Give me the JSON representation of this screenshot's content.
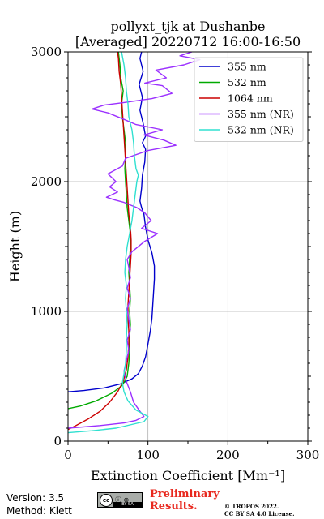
{
  "chart_data": {
    "type": "line",
    "title": "pollyxt_tjk at Dushanbe",
    "subtitle": "[Averaged] 20220712 16:00-16:50",
    "xlabel": "Extinction Coefficient [Mm⁻¹]",
    "ylabel": "Height (m)",
    "xlim": [
      0,
      300
    ],
    "ylim": [
      0,
      3000
    ],
    "xticks": [
      "0",
      "100",
      "200",
      "300"
    ],
    "yticks": [
      "0",
      "1000",
      "2000",
      "3000"
    ],
    "grid": true,
    "legend_position": "top-right",
    "series": [
      {
        "name": "355 nm",
        "color": "#0000cc",
        "points": [
          [
            0,
            380
          ],
          [
            20,
            390
          ],
          [
            45,
            410
          ],
          [
            65,
            440
          ],
          [
            80,
            480
          ],
          [
            88,
            520
          ],
          [
            93,
            580
          ],
          [
            97,
            650
          ],
          [
            100,
            750
          ],
          [
            103,
            850
          ],
          [
            105,
            950
          ],
          [
            106,
            1050
          ],
          [
            107,
            1150
          ],
          [
            108,
            1250
          ],
          [
            108,
            1350
          ],
          [
            105,
            1450
          ],
          [
            100,
            1550
          ],
          [
            97,
            1650
          ],
          [
            95,
            1750
          ],
          [
            92,
            1800
          ],
          [
            90,
            1850
          ],
          [
            92,
            1950
          ],
          [
            93,
            2050
          ],
          [
            96,
            2150
          ],
          [
            97,
            2250
          ],
          [
            93,
            2300
          ],
          [
            97,
            2350
          ],
          [
            94,
            2450
          ],
          [
            90,
            2550
          ],
          [
            93,
            2650
          ],
          [
            89,
            2750
          ],
          [
            94,
            2850
          ],
          [
            90,
            2950
          ],
          [
            92,
            3000
          ]
        ]
      },
      {
        "name": "532 nm",
        "color": "#00aa00",
        "points": [
          [
            0,
            250
          ],
          [
            15,
            270
          ],
          [
            35,
            310
          ],
          [
            55,
            370
          ],
          [
            68,
            430
          ],
          [
            74,
            500
          ],
          [
            76,
            600
          ],
          [
            77,
            700
          ],
          [
            77,
            800
          ],
          [
            78,
            900
          ],
          [
            77,
            1000
          ],
          [
            78,
            1100
          ],
          [
            77,
            1200
          ],
          [
            76,
            1300
          ],
          [
            77,
            1400
          ],
          [
            78,
            1500
          ],
          [
            78,
            1600
          ],
          [
            76,
            1700
          ],
          [
            74,
            1800
          ],
          [
            73,
            1900
          ],
          [
            72,
            2000
          ],
          [
            71,
            2100
          ],
          [
            72,
            2200
          ],
          [
            72,
            2300
          ],
          [
            70,
            2400
          ],
          [
            68,
            2500
          ],
          [
            67,
            2600
          ],
          [
            69,
            2700
          ],
          [
            66,
            2800
          ],
          [
            65,
            2900
          ],
          [
            63,
            3000
          ]
        ]
      },
      {
        "name": "1064 nm",
        "color": "#cc0000",
        "points": [
          [
            0,
            90
          ],
          [
            10,
            120
          ],
          [
            25,
            170
          ],
          [
            40,
            230
          ],
          [
            52,
            300
          ],
          [
            62,
            380
          ],
          [
            69,
            460
          ],
          [
            73,
            550
          ],
          [
            75,
            650
          ],
          [
            76,
            750
          ],
          [
            76,
            850
          ],
          [
            75,
            950
          ],
          [
            75,
            1050
          ],
          [
            76,
            1150
          ],
          [
            77,
            1250
          ],
          [
            78,
            1350
          ],
          [
            79,
            1450
          ],
          [
            79,
            1550
          ],
          [
            78,
            1650
          ],
          [
            76,
            1750
          ],
          [
            75,
            1850
          ],
          [
            74,
            1950
          ],
          [
            73,
            2050
          ],
          [
            72,
            2150
          ],
          [
            71,
            2250
          ],
          [
            70,
            2350
          ],
          [
            69,
            2450
          ],
          [
            68,
            2550
          ],
          [
            67,
            2650
          ],
          [
            66,
            2750
          ],
          [
            64,
            2850
          ],
          [
            63,
            2950
          ],
          [
            62,
            3000
          ]
        ]
      },
      {
        "name": "355 nm (NR)",
        "color": "#9b30ff",
        "points": [
          [
            0,
            100
          ],
          [
            40,
            120
          ],
          [
            70,
            140
          ],
          [
            85,
            160
          ],
          [
            95,
            190
          ],
          [
            90,
            230
          ],
          [
            82,
            300
          ],
          [
            78,
            380
          ],
          [
            73,
            460
          ],
          [
            70,
            540
          ],
          [
            73,
            620
          ],
          [
            76,
            700
          ],
          [
            74,
            780
          ],
          [
            78,
            860
          ],
          [
            76,
            940
          ],
          [
            74,
            1020
          ],
          [
            78,
            1100
          ],
          [
            74,
            1180
          ],
          [
            78,
            1260
          ],
          [
            76,
            1340
          ],
          [
            74,
            1400
          ],
          [
            80,
            1460
          ],
          [
            96,
            1540
          ],
          [
            112,
            1600
          ],
          [
            92,
            1640
          ],
          [
            104,
            1700
          ],
          [
            96,
            1760
          ],
          [
            86,
            1800
          ],
          [
            70,
            1840
          ],
          [
            58,
            1860
          ],
          [
            48,
            1880
          ],
          [
            62,
            1920
          ],
          [
            52,
            1960
          ],
          [
            60,
            2000
          ],
          [
            50,
            2060
          ],
          [
            68,
            2120
          ],
          [
            72,
            2180
          ],
          [
            100,
            2240
          ],
          [
            135,
            2280
          ],
          [
            120,
            2320
          ],
          [
            95,
            2360
          ],
          [
            118,
            2400
          ],
          [
            85,
            2440
          ],
          [
            70,
            2480
          ],
          [
            50,
            2530
          ],
          [
            30,
            2560
          ],
          [
            45,
            2590
          ],
          [
            70,
            2610
          ],
          [
            105,
            2640
          ],
          [
            130,
            2680
          ],
          [
            118,
            2740
          ],
          [
            96,
            2760
          ],
          [
            123,
            2800
          ],
          [
            110,
            2860
          ],
          [
            145,
            2900
          ],
          [
            165,
            2940
          ],
          [
            140,
            2970
          ],
          [
            155,
            3000
          ]
        ]
      },
      {
        "name": "532 nm (NR)",
        "color": "#30e0d0",
        "points": [
          [
            0,
            65
          ],
          [
            30,
            80
          ],
          [
            60,
            100
          ],
          [
            95,
            150
          ],
          [
            100,
            190
          ],
          [
            85,
            240
          ],
          [
            75,
            310
          ],
          [
            70,
            380
          ],
          [
            68,
            450
          ],
          [
            70,
            520
          ],
          [
            72,
            600
          ],
          [
            73,
            700
          ],
          [
            73,
            800
          ],
          [
            74,
            900
          ],
          [
            73,
            1000
          ],
          [
            72,
            1100
          ],
          [
            73,
            1200
          ],
          [
            71,
            1300
          ],
          [
            72,
            1400
          ],
          [
            74,
            1500
          ],
          [
            77,
            1600
          ],
          [
            80,
            1700
          ],
          [
            82,
            1800
          ],
          [
            84,
            1900
          ],
          [
            86,
            2000
          ],
          [
            88,
            2050
          ],
          [
            85,
            2100
          ],
          [
            83,
            2200
          ],
          [
            82,
            2300
          ],
          [
            80,
            2400
          ],
          [
            76,
            2500
          ],
          [
            75,
            2600
          ],
          [
            73,
            2700
          ],
          [
            72,
            2800
          ],
          [
            70,
            2900
          ],
          [
            67,
            3000
          ]
        ]
      }
    ]
  },
  "footer": {
    "version": "Version: 3.5",
    "method": "Method: Klett",
    "license_badge": {
      "cc": "cc",
      "icons": "ⓘ ⊜",
      "by_sa": "BY  SA"
    },
    "preliminary_line1": "Preliminary",
    "preliminary_line2": "Results.",
    "copyright_line1": "© TROPOS 2022.",
    "copyright_line2": "CC BY SA 4.0 License."
  }
}
